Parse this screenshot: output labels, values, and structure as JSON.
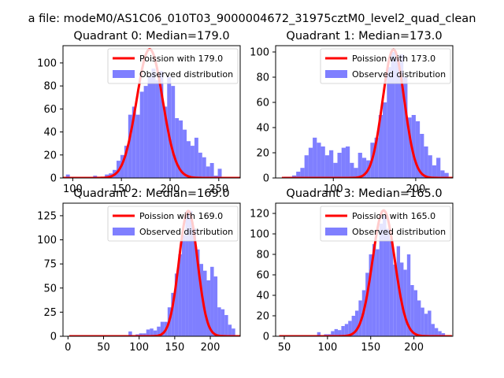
{
  "suptitle": "a file: modeM0/AS1C06_010T03_9000004672_31975cztM0_level2_quad_clean",
  "colors": {
    "poisson": "#ff0000",
    "observed": "#7f7fff",
    "axes": "#000000",
    "background": "#ffffff"
  },
  "chart_data": [
    {
      "type": "bar",
      "title": "Quadrant 0: Median=179.0",
      "median": 179.0,
      "legend": {
        "placement": "top-right",
        "poisson_label": "Poission with 179.0",
        "observed_label": "Observed distribution"
      },
      "xlim": [
        90,
        272
      ],
      "ylim": [
        0,
        115
      ],
      "xticks": [
        100,
        150,
        200,
        250
      ],
      "yticks": [
        0,
        20,
        40,
        60,
        80,
        100
      ],
      "bin_width": 4,
      "bins": [
        [
          95,
          3
        ],
        [
          99,
          1
        ],
        [
          103,
          1
        ],
        [
          107,
          1
        ],
        [
          111,
          1
        ],
        [
          115,
          1
        ],
        [
          119,
          1
        ],
        [
          123,
          2
        ],
        [
          127,
          1
        ],
        [
          131,
          1
        ],
        [
          135,
          3
        ],
        [
          139,
          4
        ],
        [
          143,
          7
        ],
        [
          147,
          15
        ],
        [
          151,
          20
        ],
        [
          155,
          28
        ],
        [
          159,
          55
        ],
        [
          163,
          62
        ],
        [
          167,
          55
        ],
        [
          171,
          75
        ],
        [
          175,
          80
        ],
        [
          179,
          88
        ],
        [
          183,
          95
        ],
        [
          187,
          85
        ],
        [
          191,
          93
        ],
        [
          195,
          62
        ],
        [
          199,
          88
        ],
        [
          203,
          80
        ],
        [
          207,
          52
        ],
        [
          211,
          50
        ],
        [
          215,
          42
        ],
        [
          219,
          32
        ],
        [
          223,
          28
        ],
        [
          227,
          35
        ],
        [
          231,
          22
        ],
        [
          235,
          18
        ],
        [
          239,
          10
        ],
        [
          243,
          13
        ],
        [
          247,
          2
        ],
        [
          251,
          8
        ],
        [
          255,
          1
        ],
        [
          259,
          1
        ],
        [
          263,
          1
        ]
      ],
      "poisson": {
        "mean": 179.0,
        "peak": 112
      }
    },
    {
      "type": "bar",
      "title": "Quadrant 1: Median=173.0",
      "median": 173.0,
      "legend": {
        "placement": "top-right",
        "poisson_label": "Poission with 173.0",
        "observed_label": "Observed distribution"
      },
      "xlim": [
        30,
        245
      ],
      "ylim": [
        0,
        105
      ],
      "xticks": [
        100,
        200
      ],
      "yticks": [
        0,
        20,
        40,
        60,
        80,
        100
      ],
      "bin_width": 5,
      "bins": [
        [
          42.5,
          1
        ],
        [
          47.5,
          1
        ],
        [
          52.5,
          2
        ],
        [
          57.5,
          5
        ],
        [
          62.5,
          8
        ],
        [
          67.5,
          18
        ],
        [
          72.5,
          24
        ],
        [
          77.5,
          32
        ],
        [
          82.5,
          28
        ],
        [
          87.5,
          25
        ],
        [
          92.5,
          18
        ],
        [
          97.5,
          22
        ],
        [
          102.5,
          12
        ],
        [
          107.5,
          20
        ],
        [
          112.5,
          24
        ],
        [
          117.5,
          25
        ],
        [
          122.5,
          12
        ],
        [
          127.5,
          8
        ],
        [
          132.5,
          20
        ],
        [
          137.5,
          16
        ],
        [
          142.5,
          14
        ],
        [
          147.5,
          28
        ],
        [
          152.5,
          32
        ],
        [
          157.5,
          50
        ],
        [
          162.5,
          60
        ],
        [
          167.5,
          88
        ],
        [
          172.5,
          100
        ],
        [
          177.5,
          95
        ],
        [
          182.5,
          98
        ],
        [
          187.5,
          80
        ],
        [
          192.5,
          48
        ],
        [
          197.5,
          50
        ],
        [
          202.5,
          45
        ],
        [
          207.5,
          35
        ],
        [
          212.5,
          25
        ],
        [
          217.5,
          18
        ],
        [
          222.5,
          10
        ],
        [
          227.5,
          16
        ],
        [
          232.5,
          6
        ],
        [
          237.5,
          4
        ]
      ],
      "poisson": {
        "mean": 173.0,
        "peak": 102
      }
    },
    {
      "type": "bar",
      "title": "Quadrant 2: Median=169.0",
      "median": 169.0,
      "legend": {
        "placement": "top-right",
        "poisson_label": "Poission with 169.0",
        "observed_label": "Observed distribution"
      },
      "xlim": [
        -7,
        242
      ],
      "ylim": [
        0,
        138
      ],
      "xticks": [
        0,
        50,
        100,
        150,
        200
      ],
      "yticks": [
        0,
        25,
        50,
        75,
        100,
        125
      ],
      "bin_width": 5,
      "bins": [
        [
          7.5,
          1
        ],
        [
          12.5,
          1
        ],
        [
          17.5,
          1
        ],
        [
          22.5,
          1
        ],
        [
          27.5,
          1
        ],
        [
          32.5,
          1
        ],
        [
          37.5,
          1
        ],
        [
          42.5,
          1
        ],
        [
          47.5,
          1
        ],
        [
          52.5,
          1
        ],
        [
          57.5,
          1
        ],
        [
          62.5,
          1
        ],
        [
          67.5,
          1
        ],
        [
          72.5,
          1
        ],
        [
          77.5,
          1
        ],
        [
          82.5,
          1
        ],
        [
          87.5,
          5
        ],
        [
          92.5,
          1
        ],
        [
          97.5,
          2
        ],
        [
          102.5,
          3
        ],
        [
          107.5,
          3
        ],
        [
          112.5,
          7
        ],
        [
          117.5,
          8
        ],
        [
          122.5,
          6
        ],
        [
          127.5,
          10
        ],
        [
          132.5,
          15
        ],
        [
          137.5,
          15
        ],
        [
          142.5,
          30
        ],
        [
          147.5,
          45
        ],
        [
          152.5,
          65
        ],
        [
          157.5,
          85
        ],
        [
          162.5,
          105
        ],
        [
          167.5,
          130
        ],
        [
          172.5,
          130
        ],
        [
          177.5,
          112
        ],
        [
          182.5,
          90
        ],
        [
          187.5,
          75
        ],
        [
          192.5,
          68
        ],
        [
          197.5,
          58
        ],
        [
          202.5,
          72
        ],
        [
          207.5,
          62
        ],
        [
          212.5,
          30
        ],
        [
          217.5,
          28
        ],
        [
          222.5,
          22
        ],
        [
          227.5,
          12
        ],
        [
          232.5,
          8
        ]
      ],
      "poisson": {
        "mean": 169.0,
        "peak": 130
      }
    },
    {
      "type": "bar",
      "title": "Quadrant 3: Median=165.0",
      "median": 165.0,
      "legend": {
        "placement": "top-right",
        "poisson_label": "Poission with 165.0",
        "observed_label": "Observed distribution"
      },
      "xlim": [
        40,
        245
      ],
      "ylim": [
        0,
        130
      ],
      "xticks": [
        50,
        100,
        150,
        200
      ],
      "yticks": [
        0,
        20,
        40,
        60,
        80,
        100,
        120
      ],
      "bin_width": 4,
      "bins": [
        [
          50,
          1
        ],
        [
          54,
          1
        ],
        [
          58,
          1
        ],
        [
          62,
          1
        ],
        [
          66,
          1
        ],
        [
          70,
          1
        ],
        [
          74,
          1
        ],
        [
          78,
          1
        ],
        [
          82,
          1
        ],
        [
          86,
          1
        ],
        [
          90,
          4
        ],
        [
          94,
          1
        ],
        [
          98,
          2
        ],
        [
          102,
          2
        ],
        [
          106,
          5
        ],
        [
          110,
          7
        ],
        [
          114,
          6
        ],
        [
          118,
          10
        ],
        [
          122,
          12
        ],
        [
          126,
          15
        ],
        [
          130,
          20
        ],
        [
          134,
          25
        ],
        [
          138,
          35
        ],
        [
          142,
          45
        ],
        [
          146,
          62
        ],
        [
          150,
          80
        ],
        [
          154,
          90
        ],
        [
          158,
          85
        ],
        [
          162,
          110
        ],
        [
          166,
          118
        ],
        [
          170,
          105
        ],
        [
          174,
          95
        ],
        [
          178,
          70
        ],
        [
          182,
          88
        ],
        [
          186,
          72
        ],
        [
          190,
          65
        ],
        [
          194,
          80
        ],
        [
          198,
          50
        ],
        [
          202,
          45
        ],
        [
          206,
          35
        ],
        [
          210,
          28
        ],
        [
          214,
          22
        ],
        [
          218,
          25
        ],
        [
          222,
          12
        ],
        [
          226,
          8
        ],
        [
          230,
          5
        ],
        [
          234,
          3
        ]
      ],
      "poisson": {
        "mean": 165.0,
        "peak": 123
      }
    }
  ]
}
